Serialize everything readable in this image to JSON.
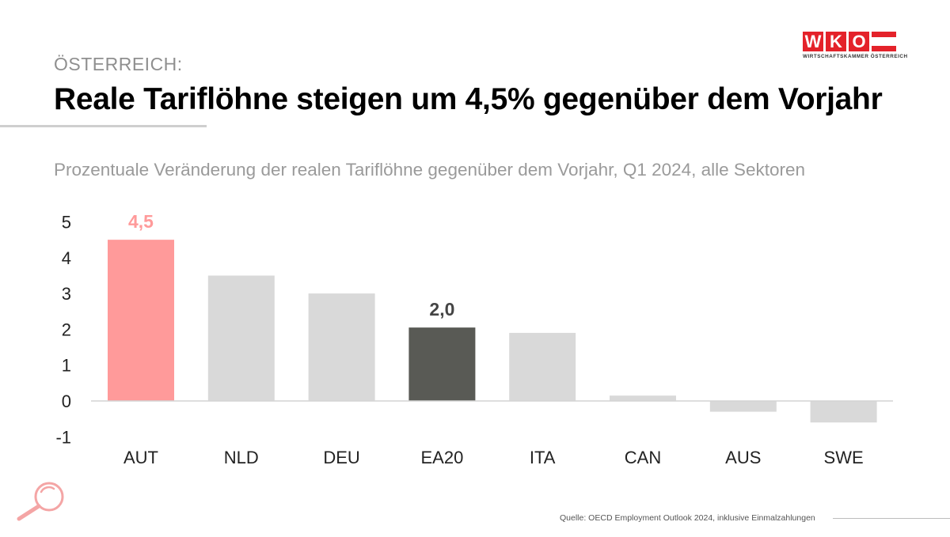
{
  "header": {
    "kicker": "ÖSTERREICH:",
    "title": "Reale Tariflöhne steigen um 4,5% gegenüber dem Vorjahr",
    "subtitle": "Prozentuale Veränderung der realen Tariflöhne gegenüber dem Vorjahr, Q1 2024, alle Sektoren"
  },
  "logo": {
    "letters": [
      "W",
      "K",
      "O"
    ],
    "subtitle": "WIRTSCHAFTSKAMMER ÖSTERREICH",
    "color": "#e4222a"
  },
  "chart_data": {
    "type": "bar",
    "title": "Prozentuale Veränderung der realen Tariflöhne gegenüber dem Vorjahr, Q1 2024, alle Sektoren",
    "categories": [
      "AUT",
      "NLD",
      "DEU",
      "EA20",
      "ITA",
      "CAN",
      "AUS",
      "SWE"
    ],
    "values": [
      4.5,
      3.5,
      3.0,
      2.05,
      1.9,
      0.15,
      -0.3,
      -0.6
    ],
    "ylim": [
      -1,
      5
    ],
    "yticks": [
      "-1",
      "0",
      "1",
      "2",
      "3",
      "4",
      "5"
    ],
    "xlabel": "",
    "ylabel": "",
    "colors": [
      "#ff9a9a",
      "#d9d9d9",
      "#d9d9d9",
      "#595a55",
      "#d9d9d9",
      "#d9d9d9",
      "#d9d9d9",
      "#d9d9d9"
    ],
    "labels": [
      {
        "category": "AUT",
        "text": "4,5",
        "color": "#ff9a9a"
      },
      {
        "category": "EA20",
        "text": "2,0",
        "color": "#444444"
      }
    ]
  },
  "footer": {
    "source": "Quelle:  OECD Employment Outlook 2024, inklusive Einmalzahlungen",
    "magnifier_icon": "magnifier-icon",
    "magnifier_color": "#f4a5a5"
  }
}
